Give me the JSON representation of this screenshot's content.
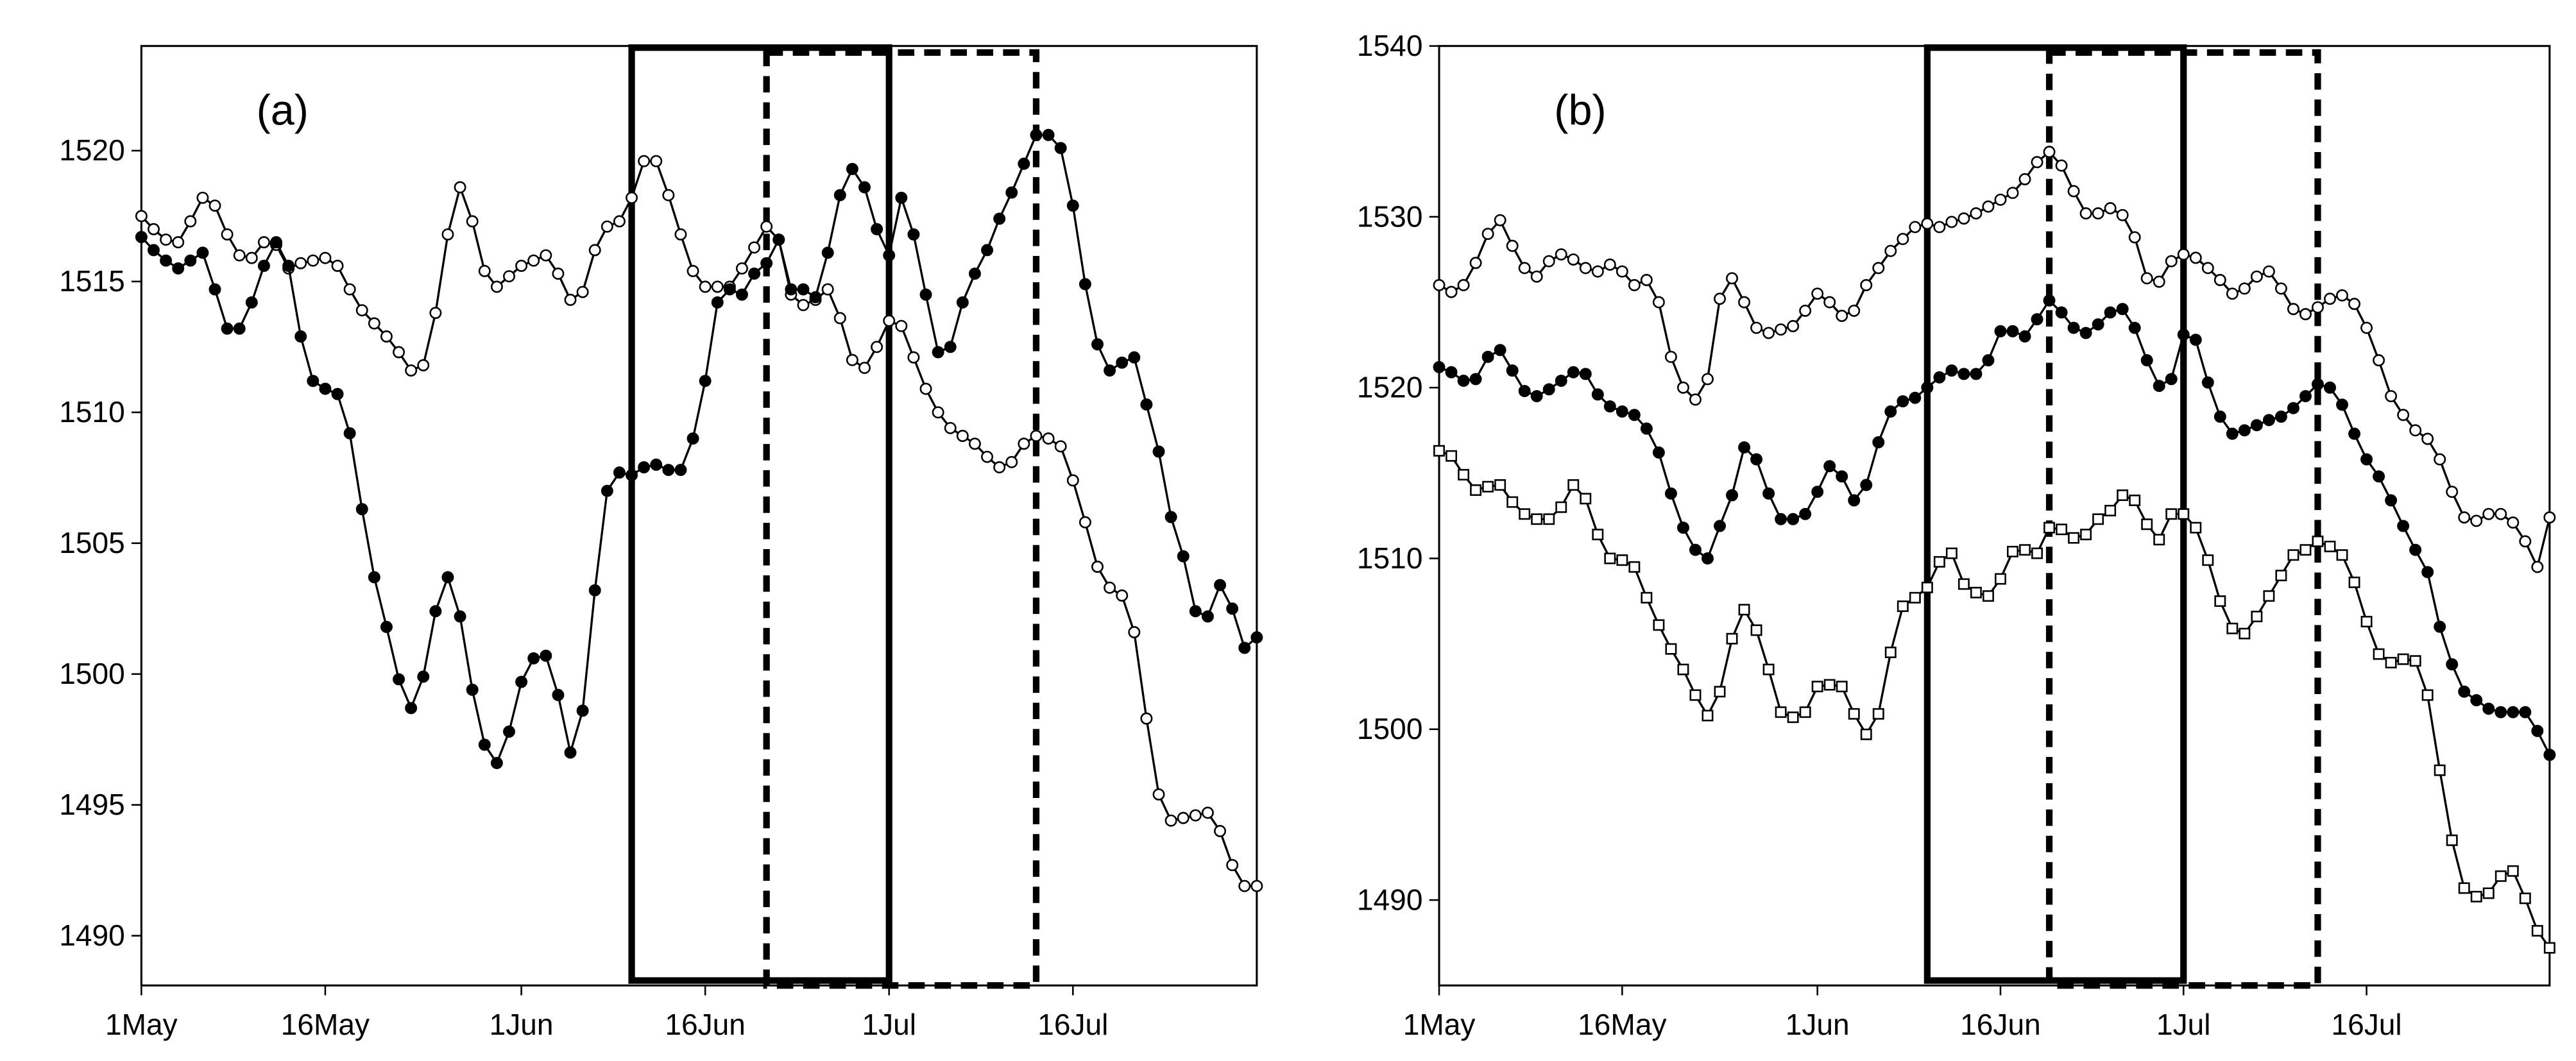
{
  "chart_data": [
    {
      "type": "line",
      "annotation": "(a)",
      "categories": [
        "1May",
        null,
        null,
        null,
        null,
        null,
        null,
        null,
        null,
        null,
        null,
        null,
        null,
        null,
        null,
        "16May",
        null,
        null,
        null,
        null,
        null,
        null,
        null,
        null,
        null,
        null,
        null,
        null,
        null,
        null,
        null,
        "1Jun",
        null,
        null,
        null,
        null,
        null,
        null,
        null,
        null,
        null,
        null,
        null,
        null,
        null,
        null,
        "16Jun",
        null,
        null,
        null,
        null,
        null,
        null,
        null,
        null,
        null,
        null,
        null,
        null,
        null,
        null,
        "1Jul",
        null,
        null,
        null,
        null,
        null,
        null,
        null,
        null,
        null,
        null,
        null,
        null,
        null,
        null,
        "16Jul",
        null,
        null,
        null,
        null,
        null,
        null,
        null,
        null,
        null,
        null,
        null,
        null,
        null,
        null,
        null
      ],
      "ylim": [
        1488.1,
        1524
      ],
      "yticks": [
        1490,
        1495,
        1500,
        1505,
        1510,
        1515,
        1520
      ],
      "regions": [
        {
          "start": 40,
          "end": 61,
          "style": "solid"
        },
        {
          "start": 51,
          "end": 73,
          "style": "dashed"
        }
      ],
      "series": [
        {
          "marker": "open-circle",
          "color": "#000000",
          "values": [
            1517.5,
            1517.0,
            1516.6,
            1516.5,
            1517.3,
            1518.2,
            1517.9,
            1516.8,
            1516.0,
            1515.9,
            1516.5,
            1516.4,
            1515.5,
            1515.7,
            1515.8,
            1515.9,
            1515.6,
            1514.7,
            1513.9,
            1513.4,
            1512.9,
            1512.3,
            1511.6,
            1511.8,
            1513.8,
            1516.8,
            1518.6,
            1517.3,
            1515.4,
            1514.8,
            1515.2,
            1515.6,
            1515.8,
            1516.0,
            1515.3,
            1514.3,
            1514.6,
            1516.2,
            1517.1,
            1517.3,
            1518.2,
            1519.6,
            1519.6,
            1518.3,
            1516.8,
            1515.4,
            1514.8,
            1514.8,
            1514.8,
            1515.5,
            1516.3,
            1517.1,
            1516.6,
            1514.5,
            1514.1,
            1514.3,
            1514.7,
            1513.6,
            1512.0,
            1511.7,
            1512.5,
            1513.5,
            1513.3,
            1512.1,
            1510.9,
            1510.0,
            1509.4,
            1509.1,
            1508.8,
            1508.3,
            1507.9,
            1508.1,
            1508.8,
            1509.1,
            1509.0,
            1508.7,
            1507.4,
            1505.8,
            1504.1,
            1503.3,
            1503.0,
            1501.6,
            1498.3,
            1495.4,
            1494.4,
            1494.5,
            1494.6,
            1494.7,
            1494.0,
            1492.7,
            1491.9,
            1491.9
          ]
        },
        {
          "marker": "filled-circle",
          "color": "#000000",
          "values": [
            1516.7,
            1516.2,
            1515.8,
            1515.5,
            1515.8,
            1516.1,
            1514.7,
            1513.2,
            1513.2,
            1514.2,
            1515.6,
            1516.5,
            1515.6,
            1512.9,
            1511.2,
            1510.9,
            1510.7,
            1509.2,
            1506.3,
            1503.7,
            1501.8,
            1499.8,
            1498.7,
            1499.9,
            1502.4,
            1503.7,
            1502.2,
            1499.4,
            1497.3,
            1496.6,
            1497.8,
            1499.7,
            1500.6,
            1500.7,
            1499.2,
            1497.0,
            1498.6,
            1503.2,
            1507.0,
            1507.7,
            1507.6,
            1507.9,
            1508.0,
            1507.8,
            1507.8,
            1509.0,
            1511.2,
            1514.2,
            1514.7,
            1514.5,
            1515.3,
            1515.7,
            1516.6,
            1514.7,
            1514.7,
            1514.4,
            1516.1,
            1518.3,
            1519.3,
            1518.6,
            1517.0,
            1516.0,
            1518.2,
            1516.8,
            1514.5,
            1512.3,
            1512.5,
            1514.2,
            1515.3,
            1516.2,
            1517.4,
            1518.4,
            1519.5,
            1520.6,
            1520.6,
            1520.1,
            1517.9,
            1514.9,
            1512.6,
            1511.6,
            1511.9,
            1512.1,
            1510.3,
            1508.5,
            1506.0,
            1504.5,
            1502.4,
            1502.2,
            1503.4,
            1502.5,
            1501.0,
            1501.4
          ]
        }
      ]
    },
    {
      "type": "line",
      "annotation": "(b)",
      "categories": [
        "1May",
        null,
        null,
        null,
        null,
        null,
        null,
        null,
        null,
        null,
        null,
        null,
        null,
        null,
        null,
        "16May",
        null,
        null,
        null,
        null,
        null,
        null,
        null,
        null,
        null,
        null,
        null,
        null,
        null,
        null,
        null,
        "1Jun",
        null,
        null,
        null,
        null,
        null,
        null,
        null,
        null,
        null,
        null,
        null,
        null,
        null,
        null,
        "16Jun",
        null,
        null,
        null,
        null,
        null,
        null,
        null,
        null,
        null,
        null,
        null,
        null,
        null,
        null,
        "1Jul",
        null,
        null,
        null,
        null,
        null,
        null,
        null,
        null,
        null,
        null,
        null,
        null,
        null,
        null,
        "16Jul",
        null,
        null,
        null,
        null,
        null,
        null,
        null,
        null,
        null,
        null,
        null,
        null,
        null,
        null,
        null
      ],
      "ylim": [
        1485,
        1540
      ],
      "yticks": [
        1490,
        1500,
        1510,
        1520,
        1530,
        1540
      ],
      "regions": [
        {
          "start": 40,
          "end": 61,
          "style": "solid"
        },
        {
          "start": 50,
          "end": 72,
          "style": "dashed"
        }
      ],
      "series": [
        {
          "marker": "open-circle",
          "color": "#000000",
          "values": [
            1526.0,
            1525.6,
            1526.0,
            1527.3,
            1529.0,
            1529.8,
            1528.3,
            1527.0,
            1526.5,
            1527.4,
            1527.8,
            1527.5,
            1527.0,
            1526.8,
            1527.2,
            1526.8,
            1526.0,
            1526.3,
            1525.0,
            1521.8,
            1520.0,
            1519.3,
            1520.5,
            1525.2,
            1526.4,
            1525.0,
            1523.5,
            1523.2,
            1523.4,
            1523.6,
            1524.5,
            1525.5,
            1525.0,
            1524.2,
            1524.5,
            1526.0,
            1527.0,
            1528.0,
            1528.7,
            1529.4,
            1529.6,
            1529.4,
            1529.7,
            1529.9,
            1530.2,
            1530.6,
            1531.0,
            1531.4,
            1532.2,
            1533.2,
            1533.8,
            1533.0,
            1531.5,
            1530.2,
            1530.2,
            1530.5,
            1530.1,
            1528.8,
            1526.4,
            1526.2,
            1527.4,
            1527.8,
            1527.6,
            1527.0,
            1526.3,
            1525.5,
            1525.8,
            1526.5,
            1526.8,
            1525.8,
            1524.6,
            1524.3,
            1524.7,
            1525.2,
            1525.4,
            1524.9,
            1523.5,
            1521.6,
            1519.5,
            1518.4,
            1517.5,
            1517.0,
            1515.8,
            1513.9,
            1512.4,
            1512.2,
            1512.6,
            1512.6,
            1512.1,
            1511.0,
            1509.5,
            1512.4
          ]
        },
        {
          "marker": "filled-circle",
          "color": "#000000",
          "values": [
            1521.2,
            1520.9,
            1520.4,
            1520.5,
            1521.8,
            1522.2,
            1521.0,
            1519.8,
            1519.5,
            1519.9,
            1520.4,
            1520.9,
            1520.8,
            1519.6,
            1518.9,
            1518.6,
            1518.4,
            1517.6,
            1516.2,
            1513.8,
            1511.8,
            1510.5,
            1510.0,
            1511.9,
            1513.7,
            1516.5,
            1515.8,
            1513.8,
            1512.3,
            1512.3,
            1512.6,
            1513.9,
            1515.4,
            1514.8,
            1513.4,
            1514.3,
            1516.8,
            1518.6,
            1519.2,
            1519.4,
            1520.0,
            1520.6,
            1521.0,
            1520.8,
            1520.8,
            1521.6,
            1523.3,
            1523.3,
            1523.0,
            1524.0,
            1525.1,
            1524.4,
            1523.5,
            1523.2,
            1523.7,
            1524.4,
            1524.6,
            1523.5,
            1521.6,
            1520.1,
            1520.5,
            1523.1,
            1522.8,
            1520.3,
            1518.3,
            1517.3,
            1517.5,
            1517.8,
            1518.1,
            1518.3,
            1518.8,
            1519.5,
            1520.2,
            1520.0,
            1519.0,
            1517.3,
            1515.8,
            1514.8,
            1513.4,
            1511.9,
            1510.5,
            1509.2,
            1506.0,
            1503.8,
            1502.2,
            1501.7,
            1501.2,
            1501.0,
            1501.0,
            1501.0,
            1499.9,
            1498.5
          ]
        },
        {
          "marker": "open-square",
          "color": "#000000",
          "values": [
            1516.3,
            1516.0,
            1514.9,
            1514.0,
            1514.2,
            1514.3,
            1513.3,
            1512.6,
            1512.3,
            1512.3,
            1513.0,
            1514.3,
            1513.5,
            1511.4,
            1510.0,
            1509.9,
            1509.5,
            1507.7,
            1506.1,
            1504.7,
            1503.5,
            1502.0,
            1500.8,
            1502.2,
            1505.3,
            1507.0,
            1505.8,
            1503.5,
            1501.0,
            1500.7,
            1501.0,
            1502.5,
            1502.6,
            1502.5,
            1500.9,
            1499.7,
            1500.9,
            1504.5,
            1507.2,
            1507.7,
            1508.3,
            1509.8,
            1510.3,
            1508.5,
            1508.0,
            1507.8,
            1508.8,
            1510.4,
            1510.5,
            1510.3,
            1511.8,
            1511.7,
            1511.2,
            1511.4,
            1512.3,
            1512.8,
            1513.7,
            1513.4,
            1512.0,
            1511.1,
            1512.6,
            1512.6,
            1511.8,
            1509.9,
            1507.5,
            1505.9,
            1505.6,
            1506.6,
            1507.8,
            1509.0,
            1510.2,
            1510.5,
            1511.0,
            1510.7,
            1510.2,
            1508.6,
            1506.3,
            1504.4,
            1503.9,
            1504.1,
            1504.0,
            1502.0,
            1497.6,
            1493.5,
            1490.7,
            1490.2,
            1490.4,
            1491.4,
            1491.7,
            1490.1,
            1488.2,
            1487.2
          ]
        }
      ]
    }
  ]
}
